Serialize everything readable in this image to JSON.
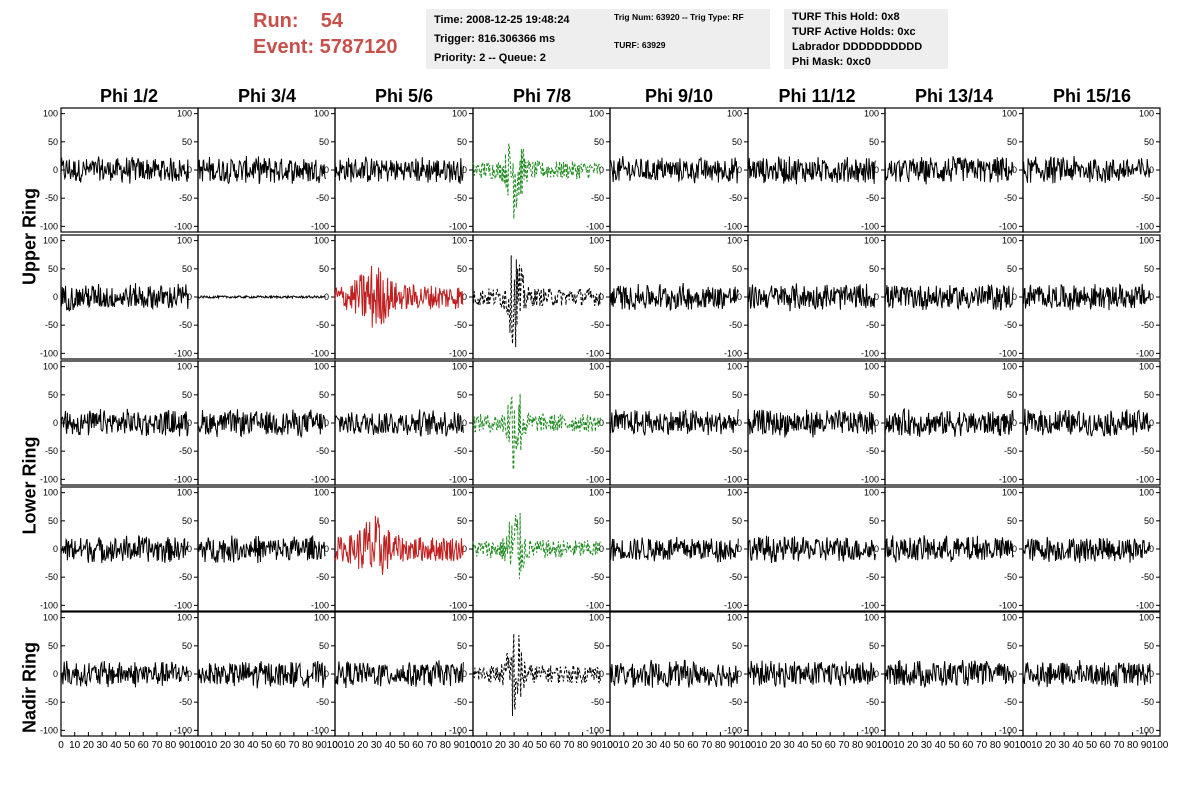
{
  "run_label": "Run:    54",
  "event_label": "Event: 5787120",
  "info1": {
    "time": "Time: 2008-12-25 19:48:24",
    "trigger": "Trigger: 816.306366 ms",
    "priority": "Priority: 2 -- Queue: 2"
  },
  "info2": {
    "trig": "Trig Num: 63920 -- Trig Type: RF",
    "turf": "TURF: 63929"
  },
  "info3": {
    "hold": "TURF This Hold: 0x8",
    "active": "TURF Active Holds: 0xc",
    "labrador": "Labrador DDDDDDDDDD",
    "phimask": "Phi Mask: 0xc0"
  },
  "columns": [
    "Phi 1/2",
    "Phi 3/4",
    "Phi 5/6",
    "Phi 7/8",
    "Phi 9/10",
    "Phi 11/12",
    "Phi 13/14",
    "Phi 15/16"
  ],
  "row_groups": [
    "Upper Ring",
    "Lower Ring",
    "Nadir Ring"
  ],
  "y_ticks": [
    "100",
    "50",
    "0",
    "-50",
    "-100"
  ],
  "x_ticks": [
    "0",
    "10",
    "20",
    "30",
    "40",
    "50",
    "60",
    "70",
    "80",
    "90",
    "100"
  ],
  "colors": {
    "red": "#c02020",
    "green": "#1e8a1e",
    "black": "#000000",
    "title_red": "#c8504a"
  },
  "chart_data": {
    "type": "line",
    "xlim": [
      0,
      100
    ],
    "ylim": [
      -110,
      110
    ],
    "panel_styles": [
      [
        "solid-black",
        "solid-black",
        "solid-black",
        "dashed-green",
        "solid-black",
        "solid-black",
        "solid-black",
        "solid-black"
      ],
      [
        "solid-black",
        "flat-black",
        "solid-red",
        "dashed-black",
        "solid-black",
        "solid-black",
        "solid-black",
        "solid-black"
      ],
      [
        "solid-black",
        "solid-black",
        "solid-black",
        "dashed-green",
        "solid-black",
        "solid-black",
        "solid-black",
        "solid-black"
      ],
      [
        "solid-black",
        "solid-black",
        "solid-red",
        "dashed-green",
        "solid-black",
        "solid-black",
        "solid-black",
        "solid-black"
      ],
      [
        "solid-black",
        "solid-black",
        "solid-black",
        "dashed-black",
        "solid-black",
        "solid-black",
        "solid-black",
        "solid-black"
      ]
    ]
  }
}
